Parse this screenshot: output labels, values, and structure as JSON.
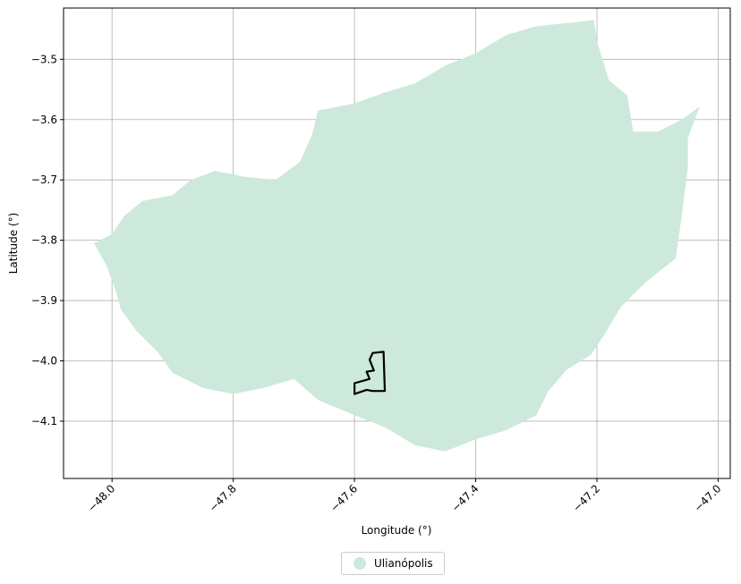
{
  "chart_data": {
    "type": "map",
    "title": "",
    "xlabel": "Longitude (°)",
    "ylabel": "Latitude (°)",
    "xlim": [
      -48.08,
      -46.98
    ],
    "ylim": [
      -4.195,
      -3.415
    ],
    "grid": true,
    "x_ticks": [
      -48.0,
      -47.8,
      -47.6,
      -47.4,
      -47.2,
      -47.0
    ],
    "x_tick_labels": [
      "−48.0",
      "−47.8",
      "−47.6",
      "−47.4",
      "−47.2",
      "−47.0"
    ],
    "y_ticks": [
      -3.5,
      -3.6,
      -3.7,
      -3.8,
      -3.9,
      -4.0,
      -4.1
    ],
    "y_tick_labels": [
      "−3.5",
      "−3.6",
      "−3.7",
      "−3.8",
      "−3.9",
      "−4.0",
      "−4.1"
    ],
    "legend_placement": "bottom-center",
    "region": {
      "name": "Ulianópolis",
      "color": "#cde9dc",
      "boundary": [
        [
          -48.03,
          -3.805
        ],
        [
          -48.0,
          -3.79
        ],
        [
          -47.98,
          -3.76
        ],
        [
          -47.95,
          -3.735
        ],
        [
          -47.9,
          -3.725
        ],
        [
          -47.87,
          -3.7
        ],
        [
          -47.83,
          -3.685
        ],
        [
          -47.78,
          -3.695
        ],
        [
          -47.73,
          -3.7
        ],
        [
          -47.69,
          -3.67
        ],
        [
          -47.67,
          -3.625
        ],
        [
          -47.66,
          -3.585
        ],
        [
          -47.6,
          -3.573
        ],
        [
          -47.55,
          -3.555
        ],
        [
          -47.5,
          -3.54
        ],
        [
          -47.45,
          -3.51
        ],
        [
          -47.4,
          -3.49
        ],
        [
          -47.35,
          -3.46
        ],
        [
          -47.3,
          -3.445
        ],
        [
          -47.25,
          -3.44
        ],
        [
          -47.205,
          -3.435
        ],
        [
          -47.2,
          -3.47
        ],
        [
          -47.18,
          -3.535
        ],
        [
          -47.15,
          -3.56
        ],
        [
          -47.14,
          -3.62
        ],
        [
          -47.1,
          -3.62
        ],
        [
          -47.06,
          -3.6
        ],
        [
          -47.03,
          -3.578
        ],
        [
          -47.05,
          -3.63
        ],
        [
          -47.05,
          -3.68
        ],
        [
          -47.06,
          -3.76
        ],
        [
          -47.07,
          -3.83
        ],
        [
          -47.12,
          -3.87
        ],
        [
          -47.16,
          -3.91
        ],
        [
          -47.19,
          -3.96
        ],
        [
          -47.21,
          -3.99
        ],
        [
          -47.25,
          -4.015
        ],
        [
          -47.28,
          -4.05
        ],
        [
          -47.3,
          -4.09
        ],
        [
          -47.35,
          -4.115
        ],
        [
          -47.4,
          -4.13
        ],
        [
          -47.45,
          -4.15
        ],
        [
          -47.5,
          -4.14
        ],
        [
          -47.55,
          -4.11
        ],
        [
          -47.6,
          -4.09
        ],
        [
          -47.66,
          -4.065
        ],
        [
          -47.7,
          -4.03
        ],
        [
          -47.75,
          -4.045
        ],
        [
          -47.8,
          -4.055
        ],
        [
          -47.85,
          -4.045
        ],
        [
          -47.9,
          -4.02
        ],
        [
          -47.925,
          -3.985
        ],
        [
          -47.96,
          -3.95
        ],
        [
          -47.985,
          -3.915
        ],
        [
          -47.995,
          -3.88
        ],
        [
          -48.01,
          -3.84
        ]
      ]
    },
    "outline": {
      "boundary": [
        [
          -47.6,
          -4.055
        ],
        [
          -47.6,
          -4.037
        ],
        [
          -47.575,
          -4.03
        ],
        [
          -47.58,
          -4.018
        ],
        [
          -47.568,
          -4.016
        ],
        [
          -47.575,
          -3.998
        ],
        [
          -47.57,
          -3.987
        ],
        [
          -47.552,
          -3.985
        ],
        [
          -47.55,
          -4.05
        ],
        [
          -47.57,
          -4.05
        ],
        [
          -47.58,
          -4.048
        ]
      ]
    }
  },
  "legend": {
    "label": "Ulianópolis",
    "marker_color": "#cde9dc"
  }
}
